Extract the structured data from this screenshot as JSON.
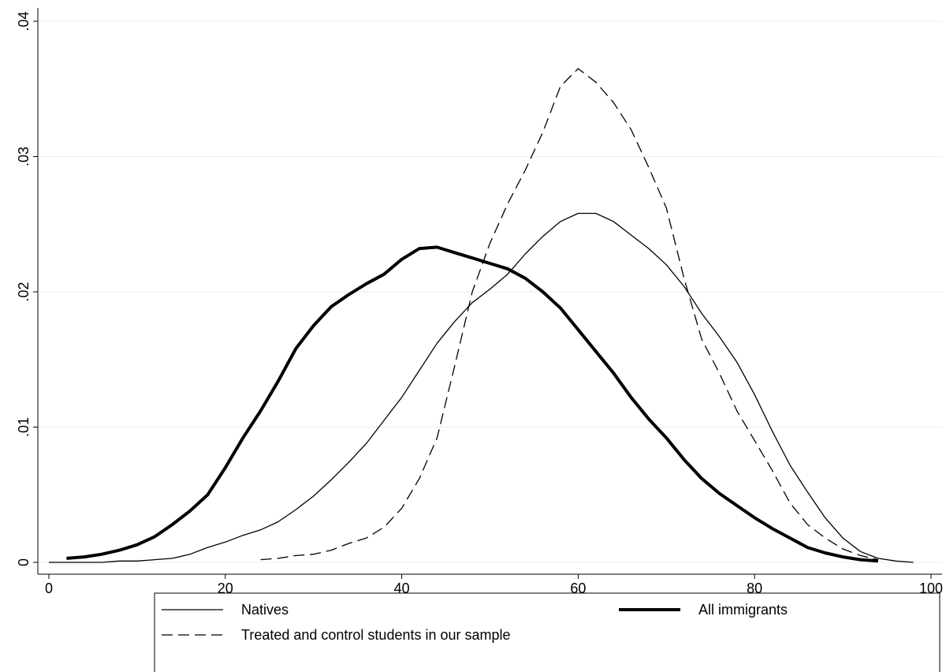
{
  "chart_data": {
    "type": "line",
    "x": [
      0,
      2,
      4,
      6,
      8,
      10,
      12,
      14,
      16,
      18,
      20,
      22,
      24,
      26,
      28,
      30,
      32,
      34,
      36,
      38,
      40,
      42,
      44,
      46,
      48,
      50,
      52,
      54,
      56,
      58,
      60,
      62,
      64,
      66,
      68,
      70,
      72,
      74,
      76,
      78,
      80,
      82,
      84,
      86,
      88,
      90,
      92,
      94,
      96,
      98
    ],
    "series": [
      {
        "name": "Natives",
        "color": "#000000",
        "line_width": 1.3,
        "dash": "solid",
        "values": [
          0,
          0,
          0,
          0,
          0.0001,
          0.0001,
          0.0002,
          0.0003,
          0.0006,
          0.0011,
          0.0015,
          0.002,
          0.0024,
          0.003,
          0.0039,
          0.0049,
          0.0061,
          0.0074,
          0.0088,
          0.0105,
          0.0122,
          0.0142,
          0.0162,
          0.0178,
          0.0192,
          0.0202,
          0.0213,
          0.0228,
          0.0241,
          0.0252,
          0.0258,
          0.0258,
          0.0252,
          0.0242,
          0.0232,
          0.022,
          0.0204,
          0.0184,
          0.0167,
          0.0148,
          0.0124,
          0.0097,
          0.0072,
          0.0052,
          0.0033,
          0.0018,
          0.0008,
          0.0003,
          0.0001,
          0
        ]
      },
      {
        "name": "All immigrants",
        "color": "#000000",
        "line_width": 4,
        "dash": "solid",
        "values": [
          null,
          0.0003,
          0.0004,
          0.0006,
          0.0009,
          0.0013,
          0.0019,
          0.0028,
          0.0038,
          0.005,
          0.007,
          0.0092,
          0.0112,
          0.0134,
          0.0158,
          0.0175,
          0.0189,
          0.0198,
          0.0206,
          0.0213,
          0.0224,
          0.0232,
          0.0233,
          0.0229,
          0.0225,
          0.0221,
          0.0217,
          0.021,
          0.02,
          0.0188,
          0.0172,
          0.0156,
          0.014,
          0.0122,
          0.0106,
          0.0092,
          0.0076,
          0.0062,
          0.0051,
          0.0042,
          0.0033,
          0.0025,
          0.0018,
          0.0011,
          0.0007,
          0.0004,
          0.0002,
          0.0001,
          null,
          null
        ]
      },
      {
        "name": "Treated and control students in our sample",
        "color": "#000000",
        "line_width": 1.3,
        "dash": "dashed",
        "values": [
          null,
          null,
          null,
          null,
          null,
          null,
          null,
          null,
          null,
          null,
          null,
          null,
          0.0002,
          0.0003,
          0.0005,
          0.0006,
          0.0009,
          0.0014,
          0.0018,
          0.0026,
          0.004,
          0.0062,
          0.0092,
          0.0145,
          0.02,
          0.0236,
          0.0265,
          0.029,
          0.0318,
          0.0352,
          0.0365,
          0.0355,
          0.034,
          0.032,
          0.0292,
          0.0262,
          0.021,
          0.0165,
          0.014,
          0.0112,
          0.009,
          0.0068,
          0.0044,
          0.0028,
          0.0018,
          0.001,
          0.0005,
          0.0002,
          null,
          null
        ]
      }
    ],
    "xlim": [
      0,
      100
    ],
    "xticks": [
      0,
      20,
      40,
      60,
      80,
      100
    ],
    "ylim": [
      0,
      0.04
    ],
    "yticks": [
      0,
      {
        "value": 0.01,
        "label": ".01"
      },
      {
        "value": 0.02,
        "label": ".02"
      },
      {
        "value": 0.03,
        "label": ".03"
      },
      {
        "value": 0.04,
        "label": ".04"
      }
    ],
    "grid": true
  }
}
